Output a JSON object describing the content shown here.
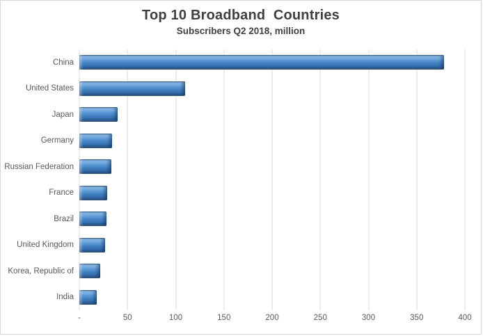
{
  "chart_data": {
    "type": "bar",
    "orientation": "horizontal",
    "title": "Top 10 Broadband  Countries",
    "subtitle": "Subscribers Q2 2018, million",
    "categories": [
      "China",
      "United States",
      "Japan",
      "Germany",
      "Russian Federation",
      "France",
      "Brazil",
      "United Kingdom",
      "Korea, Republic of",
      "India"
    ],
    "values": [
      378,
      110,
      40,
      34,
      33,
      29,
      28,
      27,
      22,
      18
    ],
    "xlabel": "",
    "ylabel": "",
    "xlim": [
      0,
      400
    ],
    "x_tick_values": [
      0,
      50,
      100,
      150,
      200,
      250,
      300,
      350,
      400
    ],
    "x_tick_labels": [
      "-",
      "50",
      "100",
      "150",
      "200",
      "250",
      "300",
      "350",
      "400"
    ],
    "grid": "vertical-only",
    "legend": "none",
    "colors": {
      "bar_fill": "#4080c0",
      "bar_highlight": "#8cbbe8",
      "bar_shadow": "#1f4e7f",
      "gridline": "#d9d9d9",
      "axis_text": "#595959",
      "title_text": "#3f3f3f",
      "chart_border": "#d7d7d7",
      "background": "#ffffff"
    }
  }
}
